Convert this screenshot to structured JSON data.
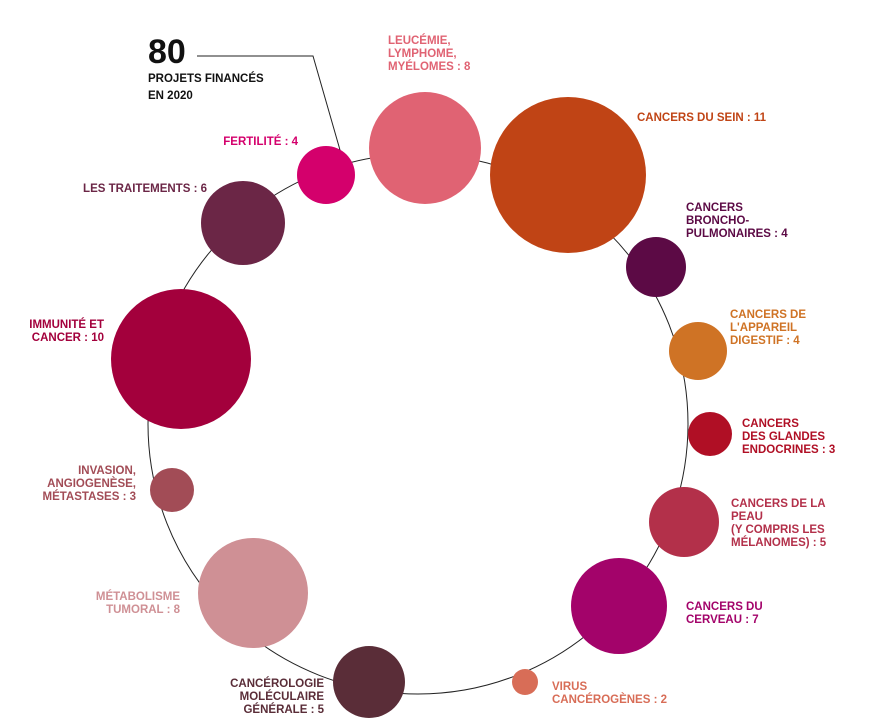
{
  "chart_data": {
    "type": "bubble-ring",
    "total": {
      "value": "80",
      "lines": [
        "PROJETS FINANCÉS",
        "EN 2020"
      ]
    },
    "bubbles": [
      {
        "id": "leucemie",
        "label_lines": [
          "LEUCÉMIE,",
          "LYMPHOME,",
          "MYÉLOMES : 8"
        ],
        "value": 8,
        "color": "#e06373"
      },
      {
        "id": "sein",
        "label_lines": [
          "CANCERS DU SEIN : 11"
        ],
        "value": 11,
        "color": "#c04415"
      },
      {
        "id": "broncho",
        "label_lines": [
          "CANCERS",
          "BRONCHO-",
          "PULMONAIRES : 4"
        ],
        "value": 4,
        "color": "#5c0a45"
      },
      {
        "id": "digestif",
        "label_lines": [
          "CANCERS DE",
          "L'APPAREIL",
          "DIGESTIF : 4"
        ],
        "value": 4,
        "color": "#cf7325"
      },
      {
        "id": "endocrines",
        "label_lines": [
          "CANCERS",
          "DES GLANDES",
          "ENDOCRINES : 3"
        ],
        "value": 3,
        "color": "#b00f25"
      },
      {
        "id": "peau",
        "label_lines": [
          "CANCERS DE LA",
          "PEAU",
          "(Y COMPRIS LES",
          "MÉLANOMES) : 5"
        ],
        "value": 5,
        "color": "#b3304a"
      },
      {
        "id": "cerveau",
        "label_lines": [
          "CANCERS DU",
          "CERVEAU : 7"
        ],
        "value": 7,
        "color": "#a3036a"
      },
      {
        "id": "virus",
        "label_lines": [
          "VIRUS",
          "CANCÉROGÈNES : 2"
        ],
        "value": 2,
        "color": "#d86d57"
      },
      {
        "id": "moleculaire",
        "label_lines": [
          "CANCÉROLOGIE",
          "MOLÉCULAIRE",
          "GÉNÉRALE : 5"
        ],
        "value": 5,
        "color": "#5a2d38"
      },
      {
        "id": "metabolisme",
        "label_lines": [
          "MÉTABOLISME",
          "TUMORAL : 8"
        ],
        "value": 8,
        "color": "#cf9095"
      },
      {
        "id": "invasion",
        "label_lines": [
          "INVASION,",
          "ANGIOGENÈSE,",
          "MÉTASTASES : 3"
        ],
        "value": 3,
        "color": "#a24c56"
      },
      {
        "id": "immunite",
        "label_lines": [
          "IMMUNITÉ ET",
          "CANCER : 10"
        ],
        "value": 10,
        "color": "#a3003c"
      },
      {
        "id": "traitements",
        "label_lines": [
          "LES TRAITEMENTS : 6"
        ],
        "value": 6,
        "color": "#6b2646"
      },
      {
        "id": "fertilite",
        "label_lines": [
          "FERTILITÉ : 4"
        ],
        "value": 4,
        "color": "#d4006c"
      }
    ]
  }
}
